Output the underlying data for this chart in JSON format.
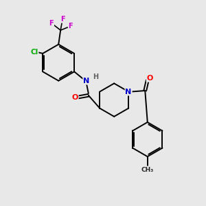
{
  "bg_color": "#e8e8e8",
  "colors": {
    "N": "#0000cc",
    "O": "#ff0000",
    "F": "#cc00cc",
    "Cl": "#00aa00",
    "C": "#000000",
    "H": "#606060"
  }
}
